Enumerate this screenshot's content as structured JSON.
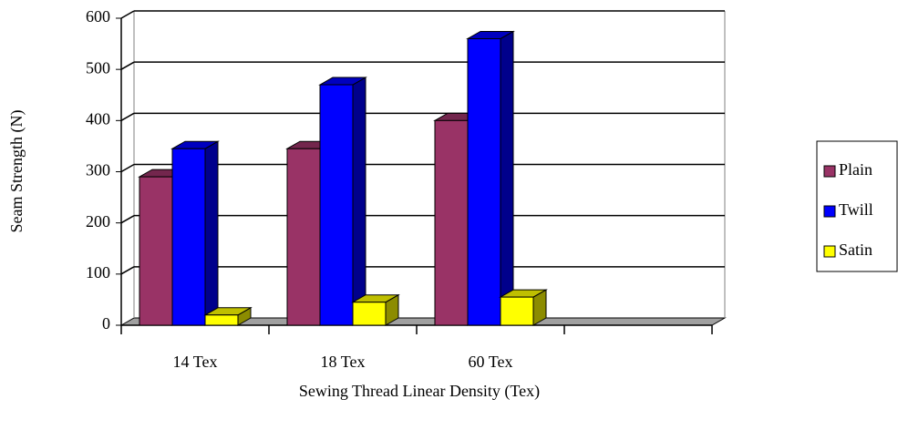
{
  "chart_data": {
    "type": "bar3d",
    "y_label": "Seam Strength (N)",
    "x_label": "Sewing Thread Linear Density (Tex)",
    "categories": [
      "14 Tex",
      "18 Tex",
      "60 Tex",
      null
    ],
    "series": [
      {
        "name": "Plain",
        "color": "#993366",
        "values": [
          290,
          345,
          400,
          null
        ]
      },
      {
        "name": "Twill",
        "color": "#0000ff",
        "values": [
          345,
          470,
          560,
          null
        ]
      },
      {
        "name": "Satin",
        "color": "#ffff00",
        "values": [
          20,
          45,
          55,
          null
        ]
      }
    ],
    "ylim": [
      0,
      600
    ],
    "yticks": [
      0,
      100,
      200,
      300,
      400,
      500,
      600
    ],
    "grid": true
  }
}
